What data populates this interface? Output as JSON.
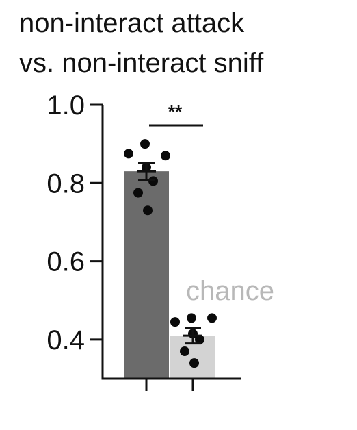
{
  "chart_data": {
    "type": "bar",
    "title_lines": [
      "non-interact attack",
      "vs. non-interact sniff"
    ],
    "xlabel": "",
    "ylabel": "",
    "ylim": [
      0.3,
      1.0
    ],
    "yticks": [
      "1.0",
      "0.8",
      "0.6",
      "0.4"
    ],
    "categories": [
      "",
      ""
    ],
    "series": [
      {
        "values": [
          0.83,
          0.41
        ],
        "errors": [
          0.022,
          0.02
        ],
        "colors": [
          "#6b6b6b",
          "#d3d3d3"
        ],
        "points": [
          [
            0.9,
            0.875,
            0.87,
            0.84,
            0.805,
            0.775,
            0.73
          ],
          [
            0.455,
            0.445,
            0.455,
            0.415,
            0.4,
            0.37,
            0.34
          ]
        ]
      }
    ],
    "annotations": {
      "significance": "**",
      "chance_label": "chance"
    },
    "grid": false,
    "legend": "none"
  }
}
